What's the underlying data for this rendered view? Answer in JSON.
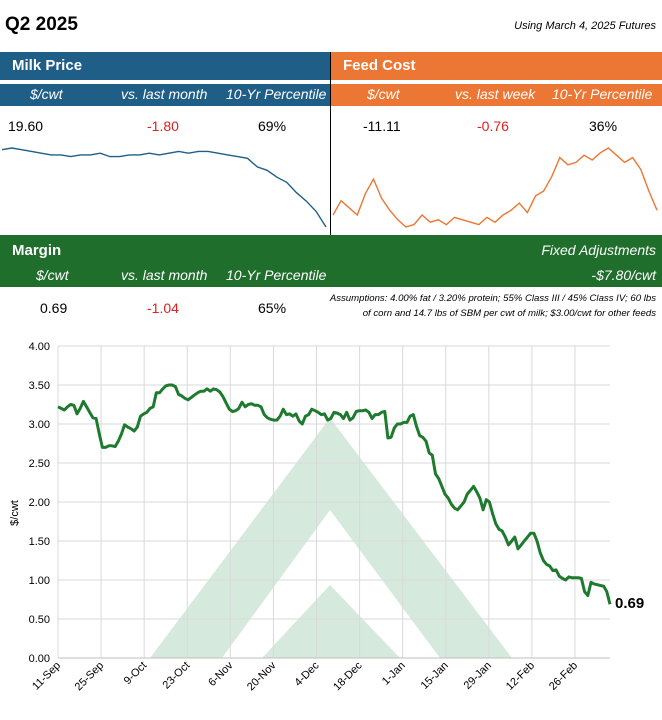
{
  "header": {
    "title": "Q2 2025",
    "futures_note": "Using March 4, 2025 Futures"
  },
  "milk": {
    "label": "Milk Price",
    "col_unit": "$/cwt",
    "col_change": "vs. last month",
    "col_pct": "10-Yr Percentile",
    "price": "19.60",
    "change": "-1.80",
    "percentile": "69%",
    "color": "#1f5f87",
    "spark": [
      20.9,
      21.0,
      20.9,
      20.8,
      20.7,
      20.6,
      20.6,
      20.5,
      20.6,
      20.6,
      20.7,
      20.5,
      20.5,
      20.6,
      20.6,
      20.7,
      20.6,
      20.7,
      20.8,
      20.7,
      20.8,
      20.8,
      20.7,
      20.6,
      20.5,
      20.4,
      19.9,
      19.7,
      19.3,
      19.0,
      18.4,
      17.9,
      17.3,
      16.4
    ]
  },
  "feed": {
    "label": "Feed Cost",
    "col_unit": "$/cwt",
    "col_change": "vs. last week",
    "col_pct": "10-Yr Percentile",
    "cost": "-11.11",
    "change": "-0.76",
    "percentile": "36%",
    "color": "#ec7633",
    "spark": [
      11.0,
      11.6,
      11.3,
      11.0,
      11.9,
      12.5,
      11.7,
      11.2,
      10.8,
      10.5,
      10.6,
      11.0,
      10.7,
      10.8,
      10.6,
      10.9,
      10.8,
      10.7,
      10.6,
      10.9,
      10.7,
      11.0,
      11.2,
      11.5,
      11.1,
      11.8,
      12.0,
      12.6,
      13.4,
      13.1,
      13.2,
      13.5,
      13.3,
      13.6,
      13.8,
      13.5,
      13.2,
      13.4,
      12.9,
      12.0,
      11.2
    ]
  },
  "margin": {
    "label": "Margin",
    "fixed_label": "Fixed Adjustments",
    "col_unit": "$/cwt",
    "col_change": "vs. last month",
    "col_pct": "10-Yr Percentile",
    "fixed_value": "-$7.80/cwt",
    "value": "0.69",
    "change": "-1.04",
    "percentile": "65%",
    "assumptions": "Assumptions: 4.00% fat / 3.20% protein; 55% Class III / 45% Class IV; 60 lbs of corn and 14.7 lbs of SBM per cwt of milk; $3.00/cwt for other feeds"
  },
  "chart_data": {
    "type": "line",
    "ylabel": "$/cwt",
    "xlabel": "",
    "ylim": [
      0,
      4
    ],
    "yticks": [
      "0.00",
      "0.50",
      "1.00",
      "1.50",
      "2.00",
      "2.50",
      "3.00",
      "3.50",
      "4.00"
    ],
    "categories": [
      "11-Sep",
      "25-Sep",
      "9-Oct",
      "23-Oct",
      "6-Nov",
      "20-Nov",
      "4-Dec",
      "18-Dec",
      "1-Jan",
      "15-Jan",
      "29-Jan",
      "12-Feb",
      "26-Feb"
    ],
    "end_label": "0.69",
    "line_color": "#1e7a2e",
    "grid": true,
    "series": [
      {
        "name": "Margin",
        "x": [
          0,
          1,
          2,
          3,
          4,
          5,
          6,
          7,
          8,
          9,
          10,
          11,
          12,
          13,
          14,
          15,
          16,
          17,
          18,
          19,
          20,
          21,
          22,
          23,
          24,
          25,
          26,
          27,
          28,
          29,
          30,
          31,
          32,
          33,
          34,
          35,
          36,
          37,
          38,
          39,
          40,
          41,
          42,
          43,
          44,
          45,
          46,
          47,
          48,
          49,
          50,
          51,
          52,
          53,
          54,
          55,
          56,
          57,
          58,
          59,
          60,
          61,
          62,
          63,
          64,
          65,
          66,
          67,
          68,
          69,
          70,
          71,
          72,
          73,
          74,
          75,
          76,
          77,
          78,
          79,
          80,
          81,
          82,
          83,
          84,
          85,
          86,
          87,
          88,
          89,
          90,
          91,
          92,
          93,
          94,
          95,
          96,
          97,
          98,
          99,
          100,
          101,
          102,
          103,
          104,
          105,
          106,
          107,
          108,
          109,
          110,
          111,
          112,
          113,
          114,
          115,
          116,
          117,
          118,
          119,
          120,
          121,
          122,
          123,
          124,
          125,
          126,
          127,
          128,
          129,
          130,
          131,
          132,
          133,
          134,
          135,
          136,
          137,
          138,
          139,
          140,
          141,
          142,
          143,
          144,
          145,
          146,
          147,
          148,
          149,
          150,
          151,
          152,
          153,
          154,
          155,
          156,
          157,
          158,
          159,
          160,
          161,
          162,
          163,
          164,
          165,
          166,
          167,
          168,
          169,
          170,
          171,
          172,
          173,
          174
        ],
        "values": [
          3.22,
          3.2,
          3.18,
          3.22,
          3.25,
          3.24,
          3.13,
          3.2,
          3.29,
          3.22,
          3.15,
          3.08,
          3.07,
          2.88,
          2.7,
          2.7,
          2.72,
          2.72,
          2.71,
          2.78,
          2.87,
          2.99,
          2.96,
          2.94,
          2.91,
          2.96,
          3.1,
          3.13,
          3.15,
          3.2,
          3.22,
          3.4,
          3.4,
          3.45,
          3.49,
          3.5,
          3.5,
          3.48,
          3.38,
          3.36,
          3.33,
          3.31,
          3.34,
          3.37,
          3.4,
          3.42,
          3.42,
          3.45,
          3.42,
          3.45,
          3.44,
          3.41,
          3.35,
          3.27,
          3.19,
          3.16,
          3.17,
          3.2,
          3.28,
          3.22,
          3.25,
          3.26,
          3.24,
          3.24,
          3.22,
          3.12,
          3.08,
          3.06,
          3.05,
          3.05,
          3.1,
          3.19,
          3.12,
          3.13,
          3.1,
          3.13,
          3.04,
          3.0,
          3.1,
          3.12,
          3.19,
          3.17,
          3.15,
          3.12,
          3.13,
          3.05,
          3.07,
          3.15,
          3.14,
          3.12,
          3.07,
          3.15,
          3.05,
          3.08,
          3.16,
          3.17,
          3.17,
          3.18,
          3.15,
          3.07,
          3.12,
          3.12,
          3.15,
          3.16,
          2.82,
          2.83,
          2.95,
          3.0,
          3.0,
          3.02,
          3.02,
          3.1,
          3.12,
          2.97,
          2.85,
          2.83,
          2.78,
          2.63,
          2.6,
          2.36,
          2.3,
          2.2,
          2.1,
          2.05,
          1.97,
          1.92,
          1.9,
          1.95,
          2.0,
          2.1,
          2.15,
          2.2,
          2.13,
          2.05,
          1.9,
          2.03,
          2.0,
          1.85,
          1.72,
          1.65,
          1.63,
          1.55,
          1.45,
          1.5,
          1.55,
          1.4,
          1.45,
          1.5,
          1.55,
          1.6,
          1.6,
          1.5,
          1.35,
          1.25,
          1.2,
          1.18,
          1.12,
          1.13,
          1.05,
          1.02,
          1.0,
          1.04,
          1.03,
          1.03,
          1.03,
          1.02,
          0.85,
          0.8,
          0.97,
          0.95,
          0.94,
          0.93,
          0.92,
          0.85,
          0.69
        ]
      }
    ]
  }
}
